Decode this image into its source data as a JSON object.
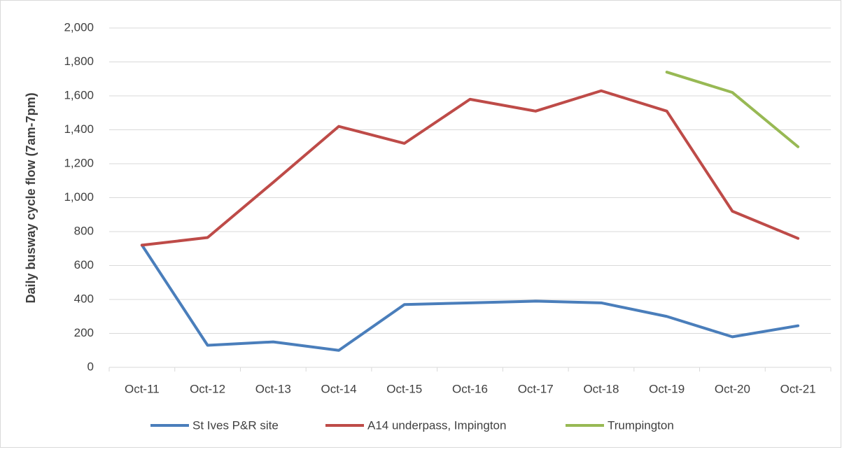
{
  "chart_data": {
    "type": "line",
    "y_label": "Daily busway cycle flow (7am-7pm)",
    "categories": [
      "Oct-11",
      "Oct-12",
      "Oct-13",
      "Oct-14",
      "Oct-15",
      "Oct-16",
      "Oct-17",
      "Oct-18",
      "Oct-19",
      "Oct-20",
      "Oct-21"
    ],
    "series": [
      {
        "name": "St Ives P&R site",
        "color": "#4a7ebb",
        "values": [
          720,
          130,
          150,
          100,
          370,
          380,
          390,
          380,
          300,
          180,
          245
        ]
      },
      {
        "name": "A14 underpass, Impington",
        "color": "#be4b48",
        "values": [
          720,
          765,
          1090,
          1420,
          1320,
          1580,
          1510,
          1630,
          1510,
          920,
          760
        ]
      },
      {
        "name": "Trumpington",
        "color": "#98b954",
        "values": [
          null,
          null,
          null,
          null,
          null,
          null,
          null,
          null,
          1740,
          1620,
          1300
        ]
      }
    ],
    "ylim": [
      0,
      2000
    ],
    "yticks": [
      0,
      200,
      400,
      600,
      800,
      {
        "value": 1000,
        "label": "1,000"
      },
      {
        "value": 1200,
        "label": "1,200"
      },
      {
        "value": 1400,
        "label": "1,400"
      },
      {
        "value": 1600,
        "label": "1,600"
      },
      {
        "value": 1800,
        "label": "1,800"
      },
      {
        "value": 2000,
        "label": "2,000"
      }
    ],
    "grid": true,
    "legend": "bottom"
  }
}
